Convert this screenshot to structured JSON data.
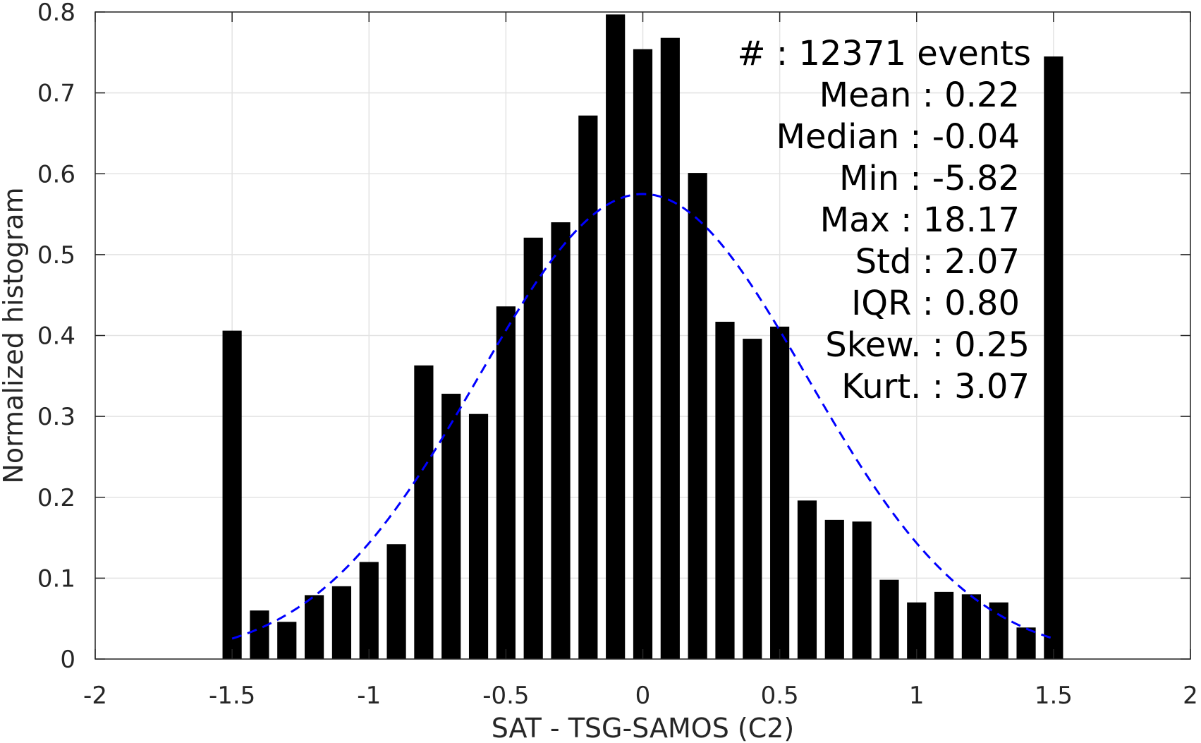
{
  "chart_data": {
    "type": "bar",
    "title": "",
    "xlabel": "SAT - TSG-SAMOS (C2)",
    "ylabel": "Normalized histogram",
    "xlim": [
      -2,
      2
    ],
    "ylim": [
      0,
      0.8
    ],
    "grid": true,
    "x_ticks": [
      -2,
      -1.5,
      -1,
      -0.5,
      0,
      0.5,
      1,
      1.5,
      2
    ],
    "x_tick_labels": [
      "-2",
      "-1.5",
      "-1",
      "-0.5",
      "0",
      "0.5",
      "1",
      "1.5",
      "2"
    ],
    "y_ticks": [
      0,
      0.1,
      0.2,
      0.3,
      0.4,
      0.5,
      0.6,
      0.7,
      0.8
    ],
    "y_tick_labels": [
      "0",
      "0.1",
      "0.2",
      "0.3",
      "0.4",
      "0.5",
      "0.6",
      "0.7",
      "0.8"
    ],
    "bar_width": 0.07,
    "x": [
      -1.5,
      -1.4,
      -1.3,
      -1.2,
      -1.1,
      -1.0,
      -0.9,
      -0.8,
      -0.7,
      -0.6,
      -0.5,
      -0.4,
      -0.3,
      -0.2,
      -0.1,
      0.0,
      0.1,
      0.2,
      0.3,
      0.4,
      0.5,
      0.6,
      0.7,
      0.8,
      0.9,
      1.0,
      1.1,
      1.2,
      1.3,
      1.4,
      1.5
    ],
    "values": [
      0.406,
      0.06,
      0.046,
      0.079,
      0.09,
      0.12,
      0.142,
      0.363,
      0.328,
      0.303,
      0.436,
      0.521,
      0.54,
      0.672,
      0.797,
      0.754,
      0.768,
      0.601,
      0.417,
      0.396,
      0.411,
      0.196,
      0.172,
      0.17,
      0.098,
      0.07,
      0.083,
      0.08,
      0.07,
      0.039,
      0.745
    ],
    "bar_color": "#000000",
    "fit_curve": {
      "style": "dashed",
      "color": "#0000ff",
      "mean": 0.0,
      "std": 0.6,
      "peak": 0.575,
      "x_range": [
        -1.5,
        1.5
      ]
    },
    "annotations": [
      "#  : 12371 events",
      "Mean : 0.22",
      "Median : -0.04",
      "Min : -5.82",
      "Max : 18.17",
      "Std : 2.07",
      "IQR : 0.80",
      "Skew. : 0.25",
      "Kurt. : 3.07"
    ]
  }
}
